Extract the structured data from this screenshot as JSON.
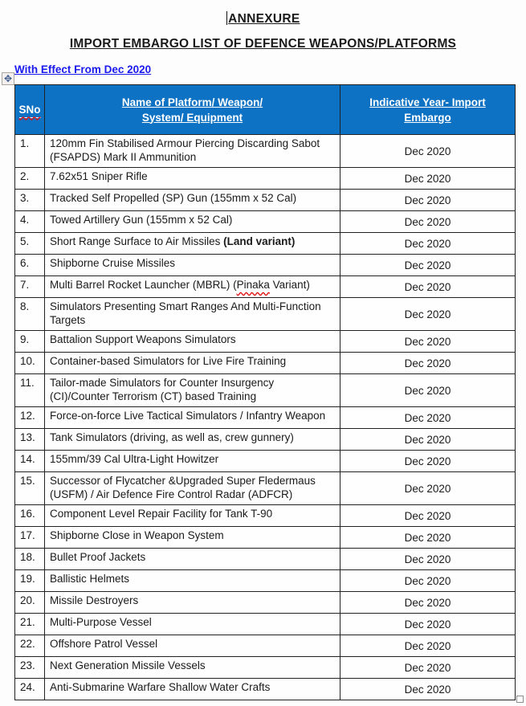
{
  "page": {
    "title1": "ANNEXURE",
    "title2": "IMPORT EMBARGO LIST OF DEFENCE WEAPONS/PLATFORMS",
    "effective_link": "With Effect From Dec 2020"
  },
  "colors": {
    "header_bg": "#0d72c4",
    "header_text": "#ffffff",
    "link_blue": "#1a1aee",
    "border": "#222222",
    "spellcheck_red": "#e01010"
  },
  "icons": {
    "move_handle_glyph": "✥",
    "move_handle_name": "table-move-handle-icon",
    "resize_handle_name": "table-resize-handle"
  },
  "table": {
    "headers": [
      {
        "lines": [
          "SNo"
        ],
        "spellcheck": true
      },
      {
        "lines": [
          "Name of Platform/ Weapon/",
          "System/ Equipment"
        ],
        "spellcheck": false
      },
      {
        "lines": [
          "Indicative Year- Import",
          "Embargo"
        ],
        "spellcheck": false
      }
    ],
    "rows": [
      {
        "sno": "1.",
        "name_parts": [
          {
            "text": "120mm Fin  Stabilised Armour Piercing Discarding Sabot (FSAPDS) Mark II Ammunition"
          }
        ],
        "year": "Dec 2020"
      },
      {
        "sno": "2.",
        "name_parts": [
          {
            "text": "7.62x51 Sniper Rifle"
          }
        ],
        "year": "Dec 2020"
      },
      {
        "sno": "3.",
        "name_parts": [
          {
            "text": "Tracked Self Propelled (SP) Gun (155mm x 52 Cal)"
          }
        ],
        "year": "Dec 2020"
      },
      {
        "sno": "4.",
        "name_parts": [
          {
            "text": "Towed Artillery Gun (155mm x 52 Cal)"
          }
        ],
        "year": "Dec 2020"
      },
      {
        "sno": "5.",
        "name_parts": [
          {
            "text": "Short Range Surface to Air Missiles "
          },
          {
            "text": "(Land variant)",
            "bold": true
          }
        ],
        "year": "Dec 2020"
      },
      {
        "sno": "6.",
        "name_parts": [
          {
            "text": "Shipborne Cruise Missiles"
          }
        ],
        "year": "Dec 2020"
      },
      {
        "sno": "7.",
        "name_parts": [
          {
            "text": "Multi Barrel Rocket Launcher (MBRL) ("
          },
          {
            "text": "Pinaka",
            "spell": true
          },
          {
            "text": " Variant)"
          }
        ],
        "year": "Dec 2020"
      },
      {
        "sno": "8.",
        "name_parts": [
          {
            "text": "Simulators Presenting Smart Ranges And Multi-Function Targets"
          }
        ],
        "year": "Dec 2020"
      },
      {
        "sno": "9.",
        "name_parts": [
          {
            "text": "Battalion Support Weapons Simulators"
          }
        ],
        "year": "Dec 2020"
      },
      {
        "sno": "10.",
        "name_parts": [
          {
            "text": "Container-based Simulators for Live Fire Training"
          }
        ],
        "year": "Dec 2020"
      },
      {
        "sno": "11.",
        "name_parts": [
          {
            "text": "Tailor-made Simulators for Counter Insurgency (CI)/Counter Terrorism (CT) based Training"
          }
        ],
        "year": "Dec 2020"
      },
      {
        "sno": "12.",
        "name_parts": [
          {
            "text": "Force-on-force Live Tactical Simulators / Infantry Weapon"
          }
        ],
        "year": "Dec 2020"
      },
      {
        "sno": "13.",
        "name_parts": [
          {
            "text": "Tank Simulators (driving, as well as, crew gunnery)"
          }
        ],
        "year": "Dec 2020"
      },
      {
        "sno": "14.",
        "name_parts": [
          {
            "text": "155mm/39 Cal Ultra-Light Howitzer"
          }
        ],
        "year": "Dec 2020"
      },
      {
        "sno": "15.",
        "name_parts": [
          {
            "text": "Successor of Flycatcher &Upgraded Super Fledermaus (USFM) / Air Defence Fire Control Radar (ADFCR)"
          }
        ],
        "year": "Dec 2020"
      },
      {
        "sno": "16.",
        "name_parts": [
          {
            "text": "Component Level Repair Facility for Tank T-90"
          }
        ],
        "year": "Dec 2020"
      },
      {
        "sno": "17.",
        "name_parts": [
          {
            "text": "Shipborne Close in Weapon System"
          }
        ],
        "year": "Dec 2020"
      },
      {
        "sno": "18.",
        "name_parts": [
          {
            "text": "Bullet Proof Jackets"
          }
        ],
        "year": "Dec 2020"
      },
      {
        "sno": "19.",
        "name_parts": [
          {
            "text": "Ballistic Helmets"
          }
        ],
        "year": "Dec 2020"
      },
      {
        "sno": "20.",
        "name_parts": [
          {
            "text": "Missile Destroyers"
          }
        ],
        "year": "Dec 2020"
      },
      {
        "sno": "21.",
        "name_parts": [
          {
            "text": "Multi-Purpose Vessel"
          }
        ],
        "year": "Dec 2020"
      },
      {
        "sno": "22.",
        "name_parts": [
          {
            "text": "Offshore Patrol Vessel"
          }
        ],
        "year": "Dec 2020"
      },
      {
        "sno": "23.",
        "name_parts": [
          {
            "text": "Next Generation Missile Vessels"
          }
        ],
        "year": "Dec 2020"
      },
      {
        "sno": "24.",
        "name_parts": [
          {
            "text": "Anti-Submarine Warfare Shallow Water Crafts"
          }
        ],
        "year": "Dec 2020"
      }
    ]
  }
}
